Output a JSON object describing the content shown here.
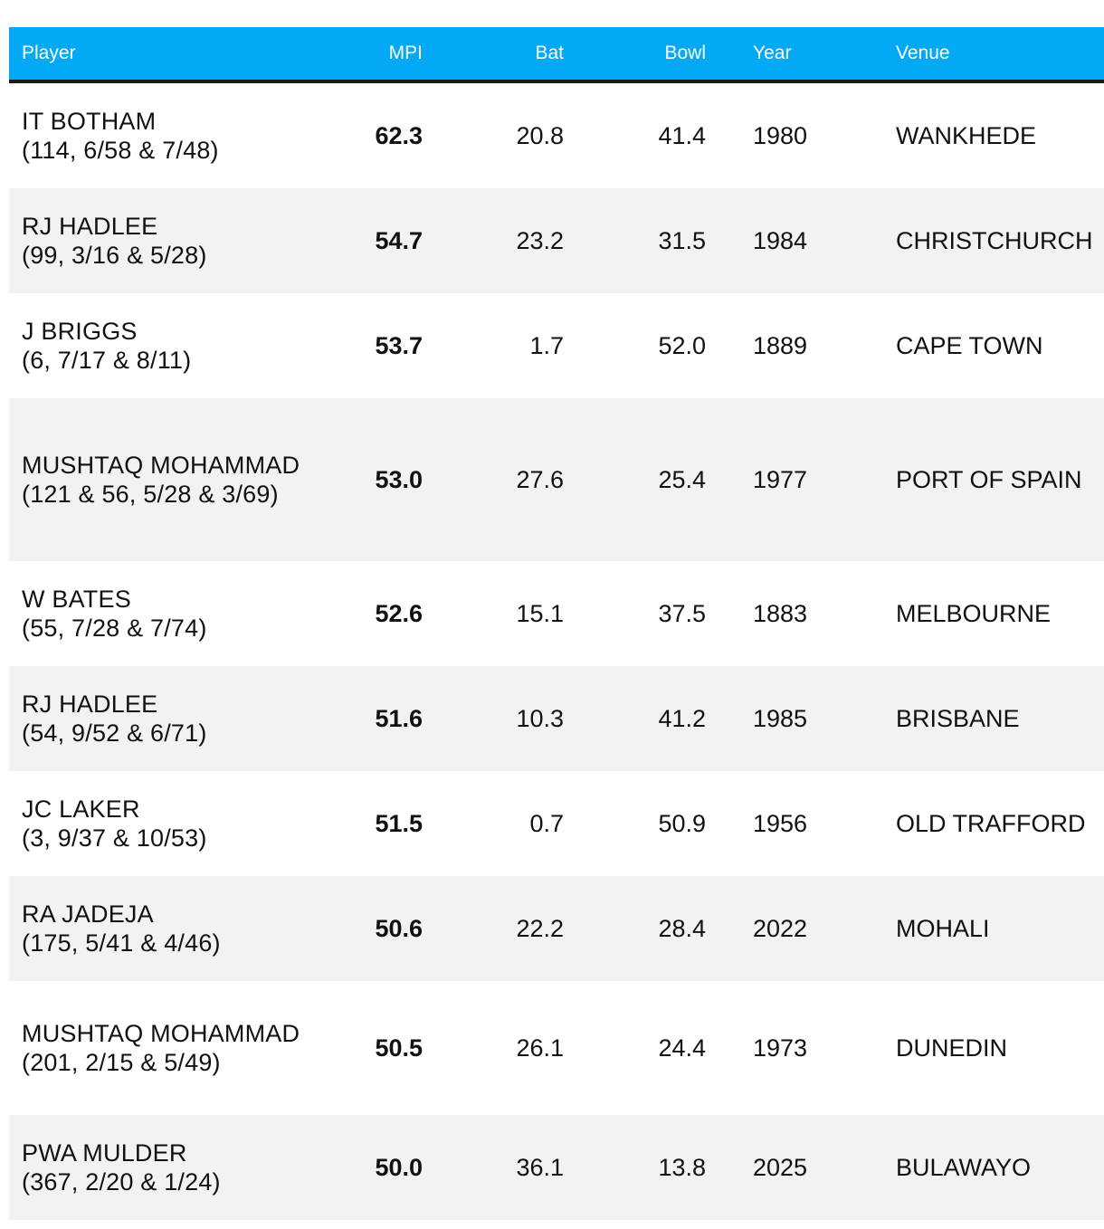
{
  "table": {
    "headers": {
      "player": "Player",
      "mpi": "MPI",
      "bat": "Bat",
      "bowl": "Bowl",
      "year": "Year",
      "venue": "Venue"
    },
    "header_color": "#03a9f4",
    "rows": [
      {
        "player": "IT BOTHAM",
        "detail": "(114, 6/58 & 7/48)",
        "mpi": "62.3",
        "bat": "20.8",
        "bowl": "41.4",
        "year": "1980",
        "venue": "WANKHEDE"
      },
      {
        "player": "RJ HADLEE",
        "detail": "(99, 3/16 & 5/28)",
        "mpi": "54.7",
        "bat": "23.2",
        "bowl": "31.5",
        "year": "1984",
        "venue": "CHRISTCHURCH"
      },
      {
        "player": "J BRIGGS",
        "detail": "(6, 7/17 & 8/11)",
        "mpi": "53.7",
        "bat": "1.7",
        "bowl": "52.0",
        "year": "1889",
        "venue": "CAPE TOWN"
      },
      {
        "player": "MUSHTAQ MOHAMMAD",
        "detail": "(121 & 56, 5/28 & 3/69)",
        "mpi": "53.0",
        "bat": "27.6",
        "bowl": "25.4",
        "year": "1977",
        "venue": "PORT OF SPAIN"
      },
      {
        "player": "W BATES",
        "detail": "(55, 7/28 & 7/74)",
        "mpi": "52.6",
        "bat": "15.1",
        "bowl": "37.5",
        "year": "1883",
        "venue": "MELBOURNE"
      },
      {
        "player": "RJ HADLEE",
        "detail": "(54, 9/52 & 6/71)",
        "mpi": "51.6",
        "bat": "10.3",
        "bowl": "41.2",
        "year": "1985",
        "venue": "BRISBANE"
      },
      {
        "player": "JC LAKER",
        "detail": "(3, 9/37 & 10/53)",
        "mpi": "51.5",
        "bat": "0.7",
        "bowl": "50.9",
        "year": "1956",
        "venue": "OLD TRAFFORD"
      },
      {
        "player": "RA JADEJA",
        "detail": "(175, 5/41 & 4/46)",
        "mpi": "50.6",
        "bat": "22.2",
        "bowl": "28.4",
        "year": "2022",
        "venue": "MOHALI"
      },
      {
        "player": "MUSHTAQ MOHAMMAD",
        "detail": "(201, 2/15 & 5/49)",
        "mpi": "50.5",
        "bat": "26.1",
        "bowl": "24.4",
        "year": "1973",
        "venue": "DUNEDIN"
      },
      {
        "player": "PWA MULDER",
        "detail": "(367, 2/20 & 1/24)",
        "mpi": "50.0",
        "bat": "36.1",
        "bowl": "13.8",
        "year": "2025",
        "venue": "BULAWAYO"
      }
    ]
  }
}
